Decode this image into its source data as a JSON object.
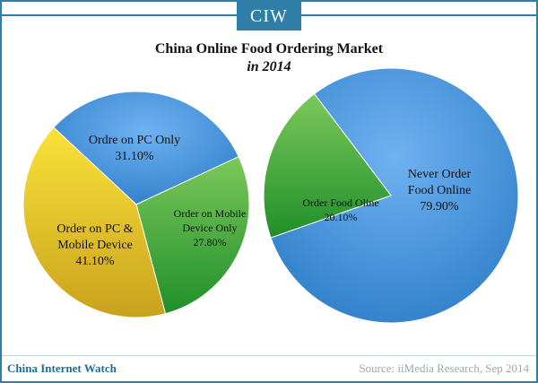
{
  "header": {
    "badge": "CIW"
  },
  "title": "China Online Food Ordering Market",
  "subtitle": "in 2014",
  "footer": {
    "left": "China Internet Watch",
    "right": "Source: iiMedia Research, Sep 2014"
  },
  "colors": {
    "pc_only": "#4b9be8",
    "mobile_only": "#52b043",
    "pc_and_mobile": "#f2d02c",
    "order_online": "#52b043",
    "never_order": "#4b9be8",
    "brand": "#2e7ea7"
  },
  "chart_data": [
    {
      "type": "pie",
      "title": "",
      "slices": [
        {
          "label_lines": [
            "Ordre on PC Only"
          ],
          "value": 31.1,
          "value_label": "31.10%",
          "color_key": "pc_only"
        },
        {
          "label_lines": [
            "Order on Mobile",
            "Device Only"
          ],
          "value": 27.8,
          "value_label": "27.80%",
          "color_key": "mobile_only"
        },
        {
          "label_lines": [
            "Order on PC &",
            "Mobile Device"
          ],
          "value": 41.1,
          "value_label": "41.10%",
          "color_key": "pc_and_mobile"
        }
      ]
    },
    {
      "type": "pie",
      "title": "",
      "slices": [
        {
          "label_lines": [
            "Never Order",
            "Food Online"
          ],
          "value": 79.9,
          "value_label": "79.90%",
          "color_key": "never_order"
        },
        {
          "label_lines": [
            "Order Food Oline"
          ],
          "value": 20.1,
          "value_label": "20.10%",
          "color_key": "order_online"
        }
      ]
    }
  ]
}
